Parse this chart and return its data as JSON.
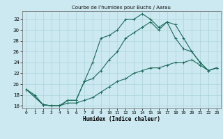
{
  "title": "Courbe de l’humidex pour Buchs / Aarau",
  "xlabel": "Humidex (Indice chaleur)",
  "bg_color": "#cce8f0",
  "line_color": "#1a6b5a",
  "grid_color": "#aad4d8",
  "ylim": [
    15.5,
    33.5
  ],
  "xlim": [
    -0.5,
    23.5
  ],
  "yticks": [
    16,
    18,
    20,
    22,
    24,
    26,
    28,
    30,
    32
  ],
  "xticks": [
    0,
    1,
    2,
    3,
    4,
    5,
    6,
    7,
    8,
    9,
    10,
    11,
    12,
    13,
    14,
    15,
    16,
    17,
    18,
    19,
    20,
    21,
    22,
    23
  ],
  "line1_x": [
    0,
    1,
    2,
    3,
    4,
    5,
    6,
    7,
    8,
    9,
    10,
    11,
    12,
    13,
    14,
    15,
    16,
    17,
    18,
    19,
    20,
    21,
    22,
    23
  ],
  "line1_y": [
    19,
    18,
    16.2,
    16,
    16,
    17,
    17,
    20.5,
    24,
    28.5,
    29,
    30,
    32,
    32,
    33,
    32,
    30.5,
    31.5,
    31,
    28.5,
    26,
    24,
    22.5,
    23
  ],
  "line2_x": [
    0,
    2,
    3,
    4,
    5,
    6,
    7,
    8,
    9,
    10,
    11,
    12,
    13,
    14,
    15,
    16,
    17,
    18,
    19,
    20,
    21,
    22,
    23
  ],
  "line2_y": [
    19,
    16.2,
    16,
    16,
    17,
    17,
    20.5,
    21,
    22.5,
    24.5,
    26,
    28.5,
    29.5,
    30.5,
    31.5,
    30,
    31.5,
    28.5,
    26.5,
    26,
    24,
    22.5,
    23
  ],
  "line3_x": [
    0,
    2,
    3,
    4,
    5,
    6,
    7,
    8,
    9,
    10,
    11,
    12,
    13,
    14,
    15,
    16,
    17,
    18,
    19,
    20,
    21,
    22,
    23
  ],
  "line3_y": [
    19,
    16.2,
    16,
    16,
    16.5,
    16.5,
    17,
    17.5,
    18.5,
    19.5,
    20.5,
    21,
    22,
    22.5,
    23,
    23,
    23.5,
    24,
    24,
    24.5,
    23.5,
    22.5,
    23
  ]
}
